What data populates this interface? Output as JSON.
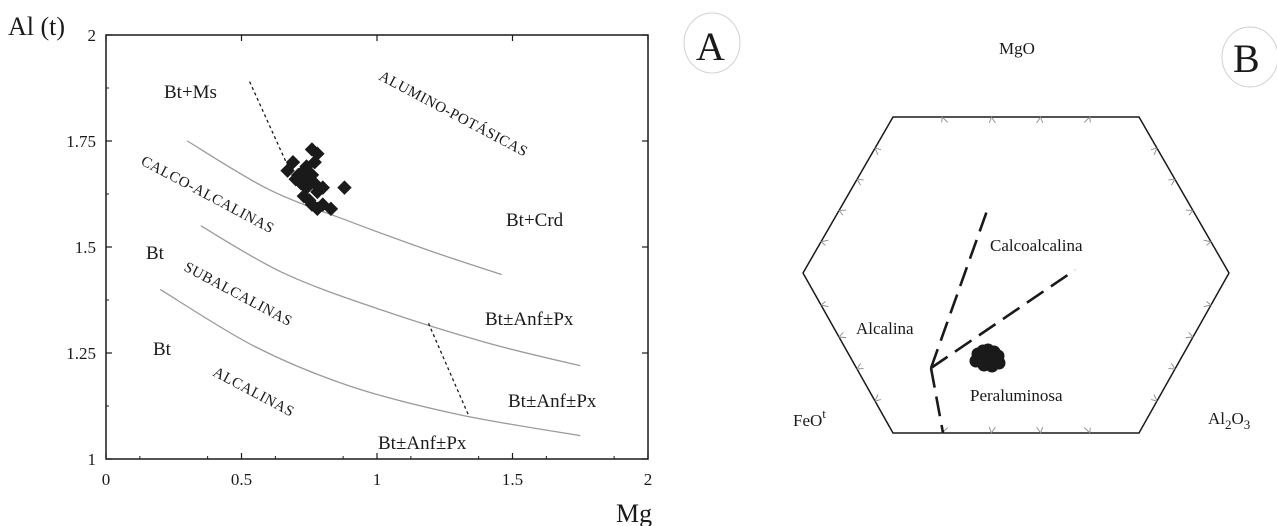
{
  "chart_data": [
    {
      "type": "scatter",
      "panel_label": "A",
      "xlabel": "Mg",
      "ylabel": "Al (t)",
      "xlim": [
        0,
        2
      ],
      "ylim": [
        1,
        2
      ],
      "x_ticks": [
        "0",
        "0.5",
        "1",
        "1.5",
        "2"
      ],
      "y_ticks": [
        "1",
        "1.25",
        "1.5",
        "1.75",
        "2"
      ],
      "field_labels": {
        "bt_ms": "Bt+Ms",
        "bt_crd": "Bt+Crd",
        "bt_upper": "Bt",
        "bt_lower": "Bt",
        "bt_anf_px_1": "Bt±Anf±Px",
        "bt_anf_px_2": "Bt±Anf±Px",
        "bt_anf_px_3": "Bt±Anf±Px"
      },
      "series_labels": {
        "alumino": "ALUMINO-POTÁSICAS",
        "calco": "CALCO-ALCALINAS",
        "subalc": "SUBALCALINAS",
        "alcal": "ALCALINAS"
      },
      "boundaries": [
        [
          [
            0.3,
            1.75
          ],
          [
            0.6,
            1.636
          ],
          [
            0.9,
            1.56
          ],
          [
            1.2,
            1.49
          ],
          [
            1.46,
            1.435
          ]
        ],
        [
          [
            0.35,
            1.55
          ],
          [
            0.65,
            1.44
          ],
          [
            1.0,
            1.355
          ],
          [
            1.4,
            1.275
          ],
          [
            1.75,
            1.22
          ]
        ],
        [
          [
            0.2,
            1.4
          ],
          [
            0.55,
            1.265
          ],
          [
            0.9,
            1.172
          ],
          [
            1.3,
            1.105
          ],
          [
            1.75,
            1.055
          ]
        ]
      ],
      "dotted_lines": [
        [
          [
            0.53,
            1.89
          ],
          [
            0.7,
            1.65
          ]
        ],
        [
          [
            1.19,
            1.32
          ],
          [
            1.34,
            1.1
          ]
        ]
      ],
      "points": [
        [
          0.67,
          1.68
        ],
        [
          0.69,
          1.7
        ],
        [
          0.71,
          1.67
        ],
        [
          0.72,
          1.66
        ],
        [
          0.73,
          1.68
        ],
        [
          0.74,
          1.64
        ],
        [
          0.75,
          1.66
        ],
        [
          0.76,
          1.67
        ],
        [
          0.77,
          1.65
        ],
        [
          0.78,
          1.63
        ],
        [
          0.72,
          1.65
        ],
        [
          0.7,
          1.66
        ],
        [
          0.74,
          1.69
        ],
        [
          0.76,
          1.73
        ],
        [
          0.78,
          1.72
        ],
        [
          0.8,
          1.64
        ],
        [
          0.75,
          1.61
        ],
        [
          0.76,
          1.6
        ],
        [
          0.78,
          1.59
        ],
        [
          0.8,
          1.6
        ],
        [
          0.83,
          1.59
        ],
        [
          0.88,
          1.64
        ],
        [
          0.73,
          1.62
        ],
        [
          0.77,
          1.7
        ]
      ]
    },
    {
      "type": "ternary",
      "panel_label": "B",
      "apex_labels": {
        "top": "MgO",
        "left": "FeO",
        "left_sup": "t",
        "right_main": "Al",
        "right_sub1": "2",
        "right_o": "O",
        "right_sub2": "3"
      },
      "field_labels": {
        "calcoalcalina": "Calcoalcalina",
        "alcalina": "Alcalina",
        "peraluminosa": "Peraluminosa"
      },
      "point_count": 12
    }
  ]
}
